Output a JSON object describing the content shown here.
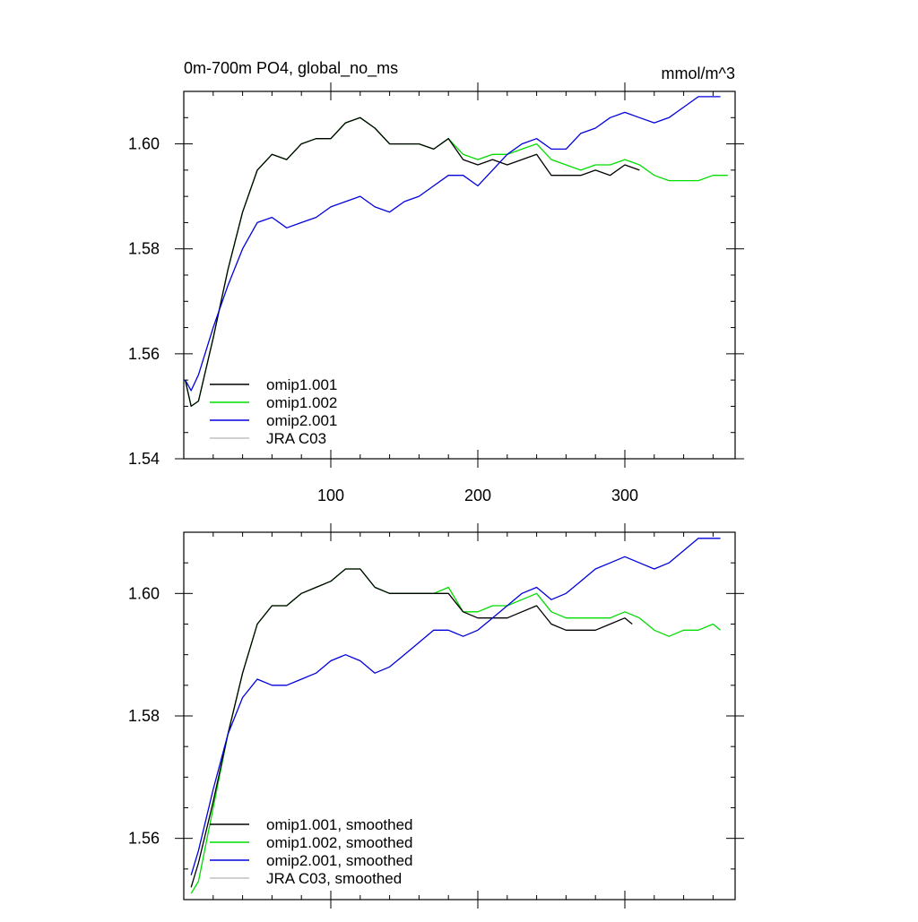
{
  "chart_data": [
    {
      "type": "line",
      "title": "0m-700m PO4, global_no_ms",
      "units": "mmol/m^3",
      "xlim": [
        0,
        375
      ],
      "ylim": [
        1.54,
        1.61
      ],
      "x_ticks": [
        100,
        200,
        300
      ],
      "x_tick_labels": [
        "100",
        "200",
        "300"
      ],
      "y_ticks": [
        1.54,
        1.56,
        1.58,
        1.6
      ],
      "y_tick_labels": [
        "1.54",
        "1.56",
        "1.58",
        "1.60"
      ],
      "legend_position": "bottom-left",
      "series": [
        {
          "name": "omip1.001",
          "color": "#000000",
          "x": [
            1,
            5,
            10,
            20,
            30,
            40,
            50,
            60,
            70,
            80,
            90,
            100,
            110,
            120,
            130,
            140,
            150,
            160,
            170,
            180,
            190,
            200,
            210,
            220,
            230,
            240,
            250,
            260,
            270,
            280,
            290,
            300,
            310
          ],
          "y": [
            1.555,
            1.55,
            1.551,
            1.563,
            1.576,
            1.587,
            1.595,
            1.598,
            1.597,
            1.6,
            1.601,
            1.601,
            1.604,
            1.605,
            1.603,
            1.6,
            1.6,
            1.6,
            1.599,
            1.601,
            1.597,
            1.596,
            1.597,
            1.596,
            1.597,
            1.598,
            1.594,
            1.594,
            1.594,
            1.595,
            1.594,
            1.596,
            1.595
          ]
        },
        {
          "name": "omip1.002",
          "color": "#00dd00",
          "x": [
            1,
            5,
            10,
            20,
            30,
            40,
            50,
            60,
            70,
            80,
            90,
            100,
            110,
            120,
            130,
            140,
            150,
            160,
            170,
            180,
            190,
            200,
            210,
            220,
            230,
            240,
            250,
            260,
            270,
            280,
            290,
            300,
            310,
            320,
            330,
            340,
            350,
            360,
            370
          ],
          "y": [
            1.555,
            1.55,
            1.551,
            1.563,
            1.576,
            1.587,
            1.595,
            1.598,
            1.597,
            1.6,
            1.601,
            1.601,
            1.604,
            1.605,
            1.603,
            1.6,
            1.6,
            1.6,
            1.599,
            1.601,
            1.598,
            1.597,
            1.598,
            1.598,
            1.599,
            1.6,
            1.597,
            1.596,
            1.595,
            1.596,
            1.596,
            1.597,
            1.596,
            1.594,
            1.593,
            1.593,
            1.593,
            1.594,
            1.594
          ]
        },
        {
          "name": "omip2.001",
          "color": "#0000dd",
          "x": [
            1,
            5,
            10,
            20,
            30,
            40,
            50,
            60,
            70,
            80,
            90,
            100,
            110,
            120,
            130,
            140,
            150,
            160,
            170,
            180,
            190,
            200,
            210,
            220,
            230,
            240,
            250,
            260,
            270,
            280,
            290,
            300,
            310,
            320,
            330,
            340,
            350,
            360,
            365
          ],
          "y": [
            1.555,
            1.553,
            1.556,
            1.565,
            1.573,
            1.58,
            1.585,
            1.586,
            1.584,
            1.585,
            1.586,
            1.588,
            1.589,
            1.59,
            1.588,
            1.587,
            1.589,
            1.59,
            1.592,
            1.594,
            1.594,
            1.592,
            1.595,
            1.598,
            1.6,
            1.601,
            1.599,
            1.599,
            1.602,
            1.603,
            1.605,
            1.606,
            1.605,
            1.604,
            1.605,
            1.607,
            1.609,
            1.609,
            1.609
          ]
        },
        {
          "name": "JRA C03",
          "color": "#c0c0c0",
          "x": [],
          "y": []
        }
      ]
    },
    {
      "type": "line",
      "title": "",
      "xlim": [
        0,
        375
      ],
      "ylim": [
        1.55,
        1.61
      ],
      "y_ticks": [
        1.56,
        1.58,
        1.6
      ],
      "y_tick_labels": [
        "1.56",
        "1.58",
        "1.60"
      ],
      "legend_position": "bottom-left",
      "series": [
        {
          "name": "omip1.001, smoothed",
          "color": "#000000",
          "x": [
            5,
            10,
            20,
            30,
            40,
            50,
            60,
            70,
            80,
            90,
            100,
            110,
            120,
            130,
            140,
            150,
            160,
            170,
            180,
            190,
            200,
            210,
            220,
            230,
            240,
            250,
            260,
            270,
            280,
            290,
            300,
            305
          ],
          "y": [
            1.552,
            1.556,
            1.566,
            1.577,
            1.587,
            1.595,
            1.598,
            1.598,
            1.6,
            1.601,
            1.602,
            1.604,
            1.604,
            1.601,
            1.6,
            1.6,
            1.6,
            1.6,
            1.6,
            1.597,
            1.596,
            1.596,
            1.596,
            1.597,
            1.598,
            1.595,
            1.594,
            1.594,
            1.594,
            1.595,
            1.596,
            1.595
          ]
        },
        {
          "name": "omip1.002, smoothed",
          "color": "#00dd00",
          "x": [
            5,
            10,
            20,
            30,
            40,
            50,
            60,
            70,
            80,
            90,
            100,
            110,
            120,
            130,
            140,
            150,
            160,
            170,
            180,
            190,
            200,
            210,
            220,
            230,
            240,
            250,
            260,
            270,
            280,
            290,
            300,
            310,
            320,
            330,
            340,
            350,
            360,
            365
          ],
          "y": [
            1.551,
            1.553,
            1.565,
            1.577,
            1.587,
            1.595,
            1.598,
            1.598,
            1.6,
            1.601,
            1.602,
            1.604,
            1.604,
            1.601,
            1.6,
            1.6,
            1.6,
            1.6,
            1.601,
            1.597,
            1.597,
            1.598,
            1.598,
            1.599,
            1.6,
            1.597,
            1.596,
            1.596,
            1.596,
            1.596,
            1.597,
            1.596,
            1.594,
            1.593,
            1.594,
            1.594,
            1.595,
            1.594
          ]
        },
        {
          "name": "omip2.001, smoothed",
          "color": "#0000dd",
          "x": [
            5,
            10,
            20,
            30,
            40,
            50,
            60,
            70,
            80,
            90,
            100,
            110,
            120,
            130,
            140,
            150,
            160,
            170,
            180,
            190,
            200,
            210,
            220,
            230,
            240,
            250,
            260,
            270,
            280,
            290,
            300,
            310,
            320,
            330,
            340,
            350,
            360,
            365
          ],
          "y": [
            1.554,
            1.558,
            1.568,
            1.577,
            1.583,
            1.586,
            1.585,
            1.585,
            1.586,
            1.587,
            1.589,
            1.59,
            1.589,
            1.587,
            1.588,
            1.59,
            1.592,
            1.594,
            1.594,
            1.593,
            1.594,
            1.596,
            1.598,
            1.6,
            1.601,
            1.599,
            1.6,
            1.602,
            1.604,
            1.605,
            1.606,
            1.605,
            1.604,
            1.605,
            1.607,
            1.609,
            1.609,
            1.609
          ]
        },
        {
          "name": "JRA C03, smoothed",
          "color": "#c0c0c0",
          "x": [],
          "y": []
        }
      ]
    }
  ]
}
